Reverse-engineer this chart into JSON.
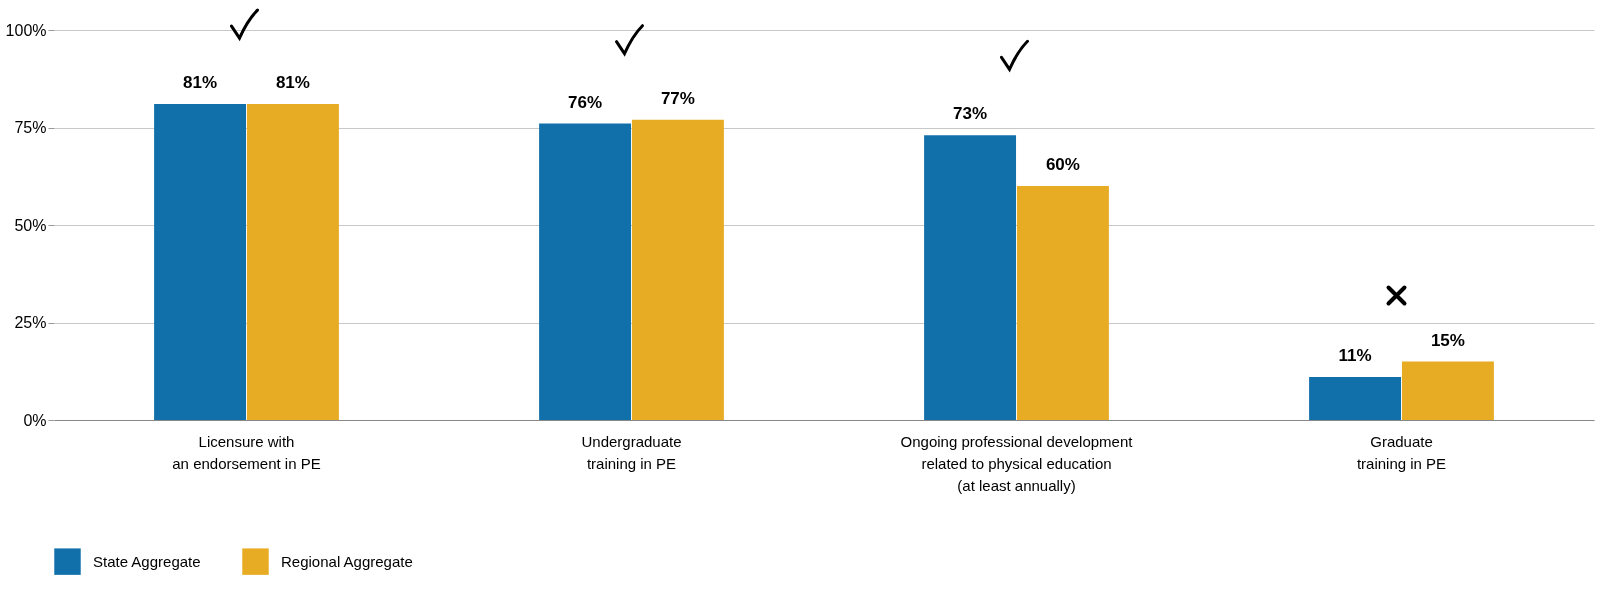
{
  "chart_data": {
    "type": "bar",
    "categories": [
      "Licensure with\nan endorsement in PE",
      "Undergraduate\ntraining in PE",
      "Ongoing professional development\nrelated to physical education\n(at least annually)",
      "Graduate\ntraining in PE"
    ],
    "series": [
      {
        "name": "State Aggregate",
        "color": "#1170aa",
        "values": [
          81,
          76,
          73,
          11
        ],
        "value_labels": [
          "81%",
          "76%",
          "73%",
          "11%"
        ]
      },
      {
        "name": "Regional Aggregate",
        "color": "#e8ab24",
        "values": [
          81,
          77,
          60,
          15
        ],
        "value_labels": [
          "81%",
          "77%",
          "60%",
          "15%"
        ]
      }
    ],
    "ylim": [
      0,
      100
    ],
    "yticks": [
      {
        "value": 0,
        "label": "0%"
      },
      {
        "value": 25,
        "label": "25%"
      },
      {
        "value": 50,
        "label": "50%"
      },
      {
        "value": 75,
        "label": "75%"
      },
      {
        "value": 100,
        "label": "100%"
      }
    ],
    "grid": "y",
    "legend": "bottom"
  }
}
